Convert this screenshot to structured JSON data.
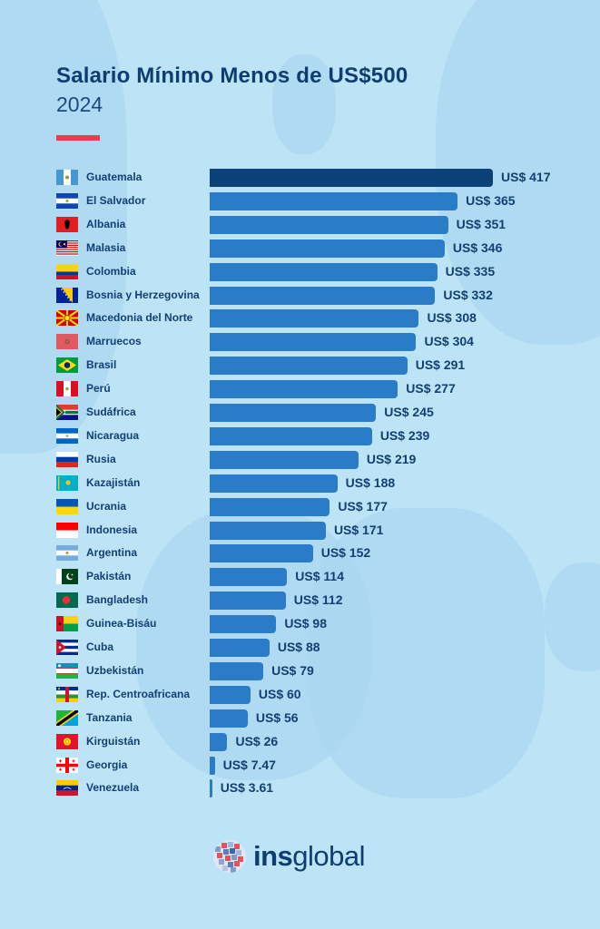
{
  "header": {
    "title": "Salario Mínimo Menos de US$500",
    "subtitle": "2024",
    "accent_color": "#ee3a4c"
  },
  "colors": {
    "background": "#bde3f6",
    "bar_highlight": "#0b4179",
    "bar_default": "#2a7bc8",
    "text": "#123f74"
  },
  "chart_data": {
    "type": "bar",
    "orientation": "horizontal",
    "title": "Salario Mínimo Menos de US$500",
    "subtitle": "2024",
    "xlabel": "",
    "ylabel": "",
    "unit": "US$",
    "grid": false,
    "legend": "none",
    "categories": [
      "Guatemala",
      "El Salvador",
      "Albania",
      "Malasia",
      "Colombia",
      "Bosnia y Herzegovina",
      "Macedonia del Norte",
      "Marruecos",
      "Brasil",
      "Perú",
      "Sudáfrica",
      "Nicaragua",
      "Rusia",
      "Kazajistán",
      "Ucrania",
      "Indonesia",
      "Argentina",
      "Pakistán",
      "Bangladesh",
      "Guinea-Bisáu",
      "Cuba",
      "Uzbekistán",
      "Rep. Centroafricana",
      "Tanzania",
      "Kirguistán",
      "Georgia",
      "Venezuela"
    ],
    "values": [
      417,
      365,
      351,
      346,
      335,
      332,
      308,
      304,
      291,
      277,
      245,
      239,
      219,
      188,
      177,
      171,
      152,
      114,
      112,
      98,
      88,
      79,
      60,
      56,
      26,
      7.47,
      3.61
    ],
    "labels": [
      "US$ 417",
      "US$ 365",
      "US$ 351",
      "US$ 346",
      "US$ 335",
      "US$ 332",
      "US$ 308",
      "US$ 304",
      "US$ 291",
      "US$ 277",
      "US$ 245",
      "US$ 239",
      "US$ 219",
      "US$ 188",
      "US$ 177",
      "US$ 171",
      "US$ 152",
      "US$ 114",
      "US$ 112",
      "US$ 98",
      "US$ 88",
      "US$ 79",
      "US$ 60",
      "US$ 56",
      "US$ 26",
      "US$ 7.47",
      "US$ 3.61"
    ],
    "flags": [
      "guatemala-flag",
      "el-salvador-flag",
      "albania-flag",
      "malaysia-flag",
      "colombia-flag",
      "bosnia-flag",
      "north-macedonia-flag",
      "morocco-flag",
      "brazil-flag",
      "peru-flag",
      "south-africa-flag",
      "nicaragua-flag",
      "russia-flag",
      "kazakhstan-flag",
      "ukraine-flag",
      "indonesia-flag",
      "argentina-flag",
      "pakistan-flag",
      "bangladesh-flag",
      "guinea-bissau-flag",
      "cuba-flag",
      "uzbekistan-flag",
      "central-african-republic-flag",
      "tanzania-flag",
      "kyrgyzstan-flag",
      "georgia-flag",
      "venezuela-flag"
    ]
  },
  "footer": {
    "logo_icon": "globe-icon",
    "logo_bold": "ins",
    "logo_regular": "global"
  }
}
